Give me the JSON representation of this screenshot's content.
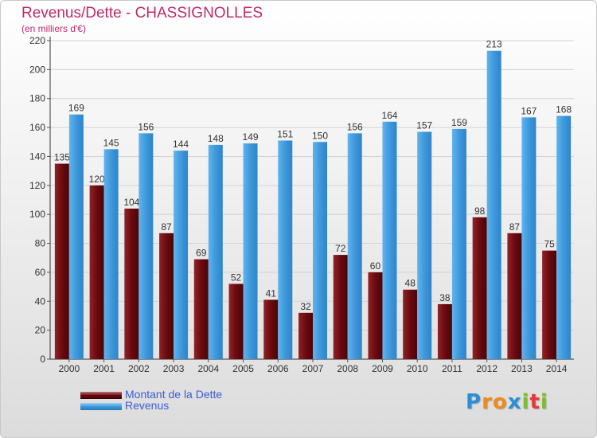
{
  "title": "Revenus/Dette - CHASSIGNOLLES",
  "subtitle": "(en milliers d'€)",
  "colors": {
    "dette": "#6b0a0f",
    "revenus": "#3d98dc",
    "title": "#c02a6a",
    "legend_text": "#3a5bd9"
  },
  "chart_data": {
    "type": "bar",
    "title": "Revenus/Dette - CHASSIGNOLLES",
    "ylabel": "(en milliers d'€)",
    "xlabel": "",
    "ylim": [
      0,
      220
    ],
    "yticks": [
      0,
      20,
      40,
      60,
      80,
      100,
      120,
      140,
      160,
      180,
      200,
      220
    ],
    "grid": true,
    "legend_position": "bottom-left",
    "categories": [
      "2000",
      "2001",
      "2002",
      "2003",
      "2004",
      "2005",
      "2006",
      "2007",
      "2008",
      "2009",
      "2010",
      "2011",
      "2012",
      "2013",
      "2014"
    ],
    "series": [
      {
        "name": "Montant de la Dette",
        "values": [
          135,
          120,
          104,
          87,
          69,
          52,
          41,
          32,
          72,
          60,
          48,
          38,
          98,
          87,
          75
        ]
      },
      {
        "name": "Revenus",
        "values": [
          169,
          145,
          156,
          144,
          148,
          149,
          151,
          150,
          156,
          164,
          157,
          159,
          213,
          167,
          168
        ]
      }
    ]
  },
  "legend": {
    "dette_label": "Montant de la Dette",
    "revenus_label": "Revenus"
  },
  "logo": {
    "letters": [
      "P",
      "r",
      "o",
      "x",
      "i",
      "t",
      "i"
    ],
    "colors": [
      "#2a8fd6",
      "#f08a1c",
      "#f08a1c",
      "#2a8fd6",
      "#7cbf2a",
      "#e23a3a",
      "#7cbf2a"
    ]
  }
}
